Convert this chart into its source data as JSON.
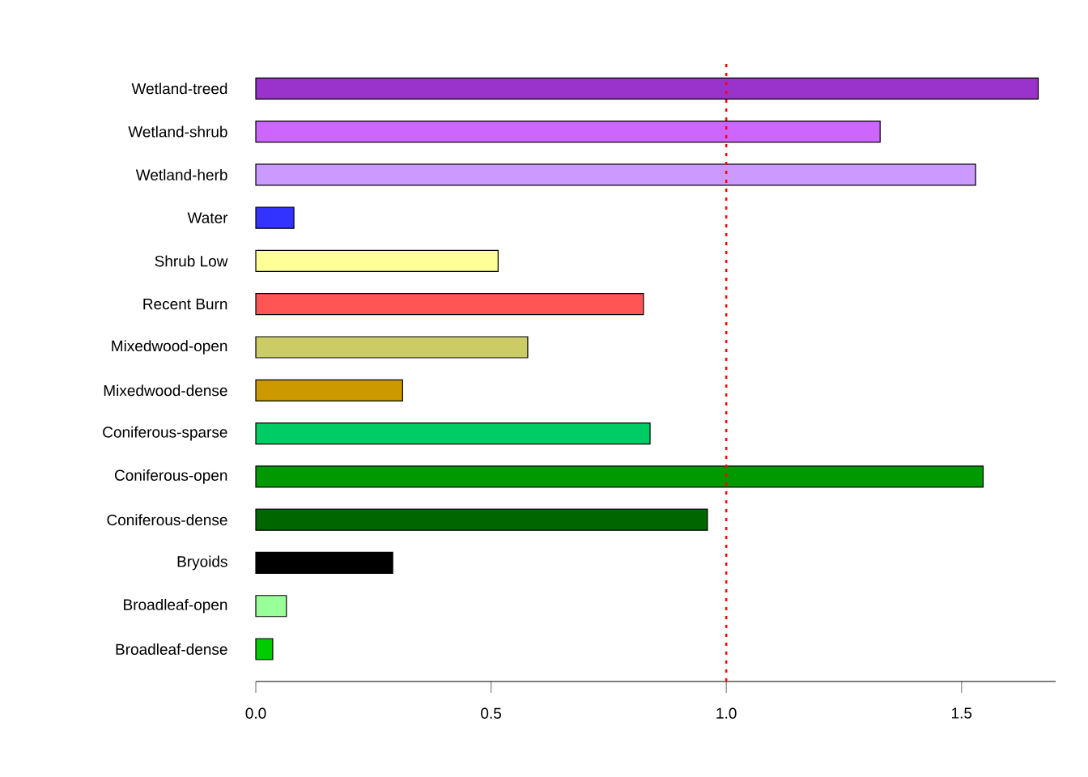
{
  "chart_data": {
    "type": "bar",
    "orientation": "horizontal",
    "categories": [
      "Wetland-treed",
      "Wetland-shrub",
      "Wetland-herb",
      "Water",
      "Shrub Low",
      "Recent Burn",
      "Mixedwood-open",
      "Mixedwood-dense",
      "Coniferous-sparse",
      "Coniferous-open",
      "Coniferous-dense",
      "Bryoids",
      "Broadleaf-open",
      "Broadleaf-dense"
    ],
    "values": [
      1.663,
      1.327,
      1.53,
      0.081,
      0.515,
      0.824,
      0.578,
      0.312,
      0.838,
      1.546,
      0.96,
      0.291,
      0.065,
      0.036
    ],
    "colors": [
      "#9933cc",
      "#cc66ff",
      "#cc99ff",
      "#3333ff",
      "#ffff99",
      "#ff5555",
      "#cccc66",
      "#cc9900",
      "#00cc66",
      "#009900",
      "#006600",
      "#000000",
      "#99ff99",
      "#00cc00"
    ],
    "xlim": [
      0,
      1.7
    ],
    "xticks": [
      {
        "value": 0,
        "label": "0.0"
      },
      {
        "value": 0.5,
        "label": "0.5"
      },
      {
        "value": 1,
        "label": "1.0"
      },
      {
        "value": 1.5,
        "label": "1.5"
      }
    ],
    "ref_lines": [
      {
        "axis": "x",
        "value": 1,
        "color": "#ff0000",
        "line_style": "dotted"
      }
    ]
  }
}
